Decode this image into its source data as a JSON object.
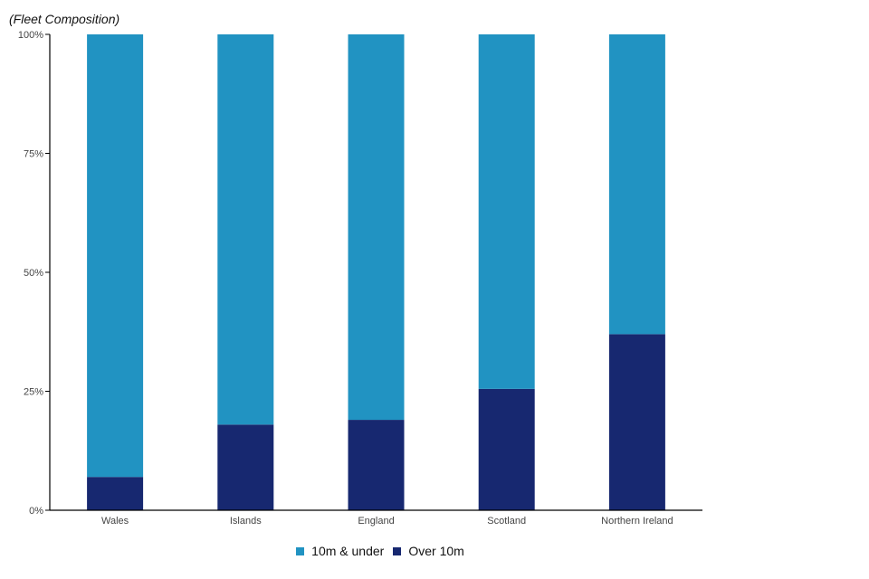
{
  "chart_data": {
    "type": "bar",
    "stacked": true,
    "title": "(Fleet Composition)",
    "categories": [
      "Wales",
      "Islands",
      "England",
      "Scotland",
      "Northern Ireland"
    ],
    "series": [
      {
        "name": "Over 10m",
        "color": "#172870",
        "values": [
          7,
          18,
          19,
          25.5,
          37
        ]
      },
      {
        "name": "10m & under",
        "color": "#2193c2",
        "values": [
          93,
          82,
          81,
          74.5,
          63
        ]
      }
    ],
    "legend_order": [
      "10m & under",
      "Over 10m"
    ],
    "yticks": [
      "0%",
      "25%",
      "50%",
      "75%",
      "100%"
    ],
    "ytick_values": [
      0,
      25,
      50,
      75,
      100
    ],
    "ylim": [
      0,
      100
    ],
    "xlabel": "",
    "ylabel": "",
    "grid": false,
    "legend_position": "bottom"
  }
}
